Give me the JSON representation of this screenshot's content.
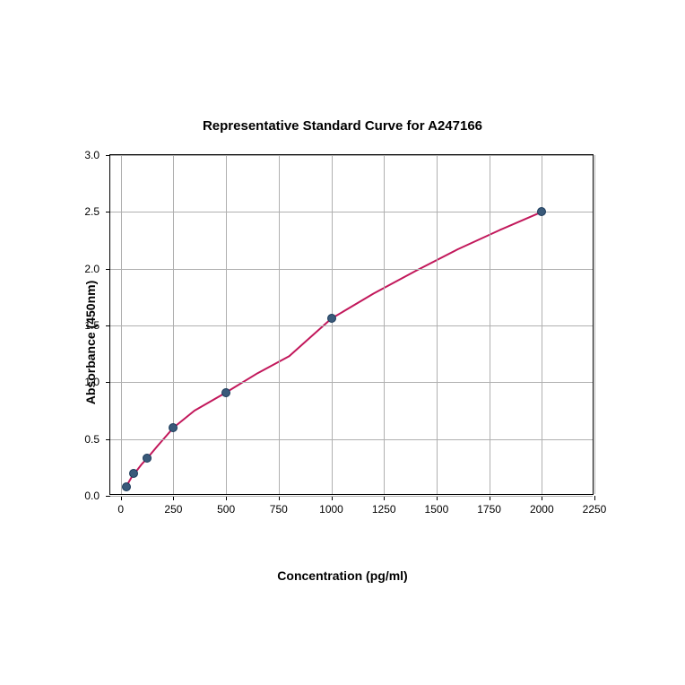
{
  "chart": {
    "type": "scatter-line",
    "title": "Representative Standard Curve for A247166",
    "title_fontsize": 15,
    "title_fontweight": "bold",
    "xlabel": "Concentration (pg/ml)",
    "ylabel": "Absorbance (450nm)",
    "label_fontsize": 14,
    "label_fontweight": "bold",
    "tick_fontsize": 12,
    "background_color": "#ffffff",
    "grid_color": "#b0b0b0",
    "border_color": "#000000",
    "xlim": [
      -50,
      2250
    ],
    "ylim": [
      0,
      3.0
    ],
    "xticks": [
      0,
      250,
      500,
      750,
      1000,
      1250,
      1500,
      1750,
      2000,
      2250
    ],
    "yticks": [
      0.0,
      0.5,
      1.0,
      1.5,
      2.0,
      2.5,
      3.0
    ],
    "ytick_labels": [
      "0.0",
      "0.5",
      "1.0",
      "1.5",
      "2.0",
      "2.5",
      "3.0"
    ],
    "data_points": {
      "x": [
        25,
        60,
        125,
        250,
        500,
        1000,
        2000
      ],
      "y": [
        0.08,
        0.2,
        0.33,
        0.6,
        0.91,
        1.56,
        2.5
      ]
    },
    "curve_points": {
      "x": [
        25,
        50,
        75,
        100,
        125,
        175,
        250,
        350,
        500,
        650,
        800,
        1000,
        1200,
        1400,
        1600,
        1800,
        2000
      ],
      "y": [
        0.08,
        0.16,
        0.22,
        0.28,
        0.33,
        0.44,
        0.6,
        0.75,
        0.91,
        1.08,
        1.23,
        1.56,
        1.78,
        1.98,
        2.17,
        2.34,
        2.5
      ]
    },
    "line_color": "#c2185b",
    "line_width": 2,
    "marker_fill": "#3a5a7a",
    "marker_stroke": "#1a3a5a",
    "marker_radius": 5
  }
}
